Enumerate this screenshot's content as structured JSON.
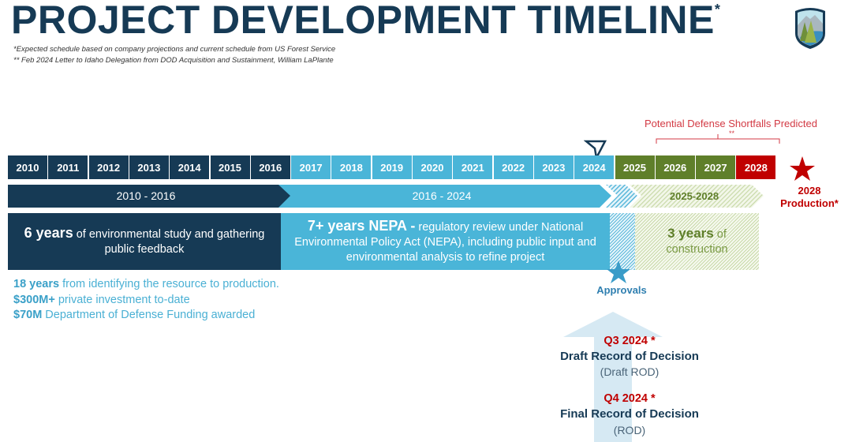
{
  "title": "PROJECT DEVELOPMENT TIMELINE",
  "title_mark": "*",
  "footnotes": [
    "*Expected schedule based on company projections and current schedule from US Forest Service",
    "** Feb 2024 Letter to Idaho Delegation from DOD Acquisition and Sustainment, William LaPlante"
  ],
  "logo": "mountain-forest-shield-logo",
  "shortfall": {
    "label": "Potential Defense Shortfalls Predicted",
    "mark": "**"
  },
  "years": [
    "2010",
    "2011",
    "2012",
    "2013",
    "2014",
    "2015",
    "2016",
    "2017",
    "2018",
    "2019",
    "2020",
    "2021",
    "2022",
    "2023",
    "2024",
    "2025",
    "2026",
    "2027",
    "2028"
  ],
  "colors": {
    "navy": "#163a55",
    "blue": "#4ab5d8",
    "green": "#5f7f2a",
    "red": "#c00000"
  },
  "bands": {
    "a": "2010 - 2016",
    "b": "2016 - 2024",
    "c": "2025-2028"
  },
  "boxes": {
    "a_bold": "6 years",
    "a_text": " of environmental study and gathering public feedback",
    "b_bold": "7+ years NEPA -",
    "b_text": " regulatory review under National Environmental Policy Act (NEPA), including public input and environmental analysis to refine project",
    "c_bold": "3 years",
    "c_text": " of construction"
  },
  "production": {
    "year": "2028",
    "label": "Production*"
  },
  "approvals": "Approvals",
  "stats": [
    {
      "bold": "18 years",
      "text": " from identifying the resource to production."
    },
    {
      "bold": "$300M+",
      "text": " private investment to-date"
    },
    {
      "bold": "$70M",
      "text": " Department of Defense Funding awarded"
    }
  ],
  "milestones": [
    {
      "date": "Q3 2024 *",
      "title": "Draft Record of Decision",
      "abbr": "(Draft ROD)"
    },
    {
      "date": "Q4 2024 *",
      "title": "Final Record of Decision",
      "abbr": "(ROD)"
    }
  ]
}
